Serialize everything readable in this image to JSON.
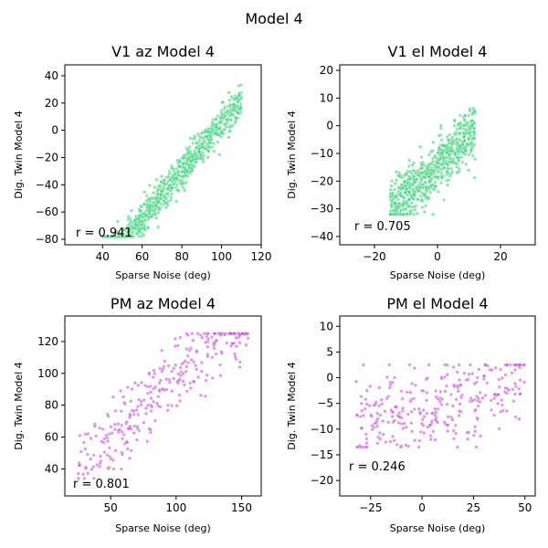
{
  "figure_title": "Model 4",
  "chart_data": [
    {
      "type": "scatter",
      "title": "V1 az Model 4",
      "xlabel": "Sparse Noise (deg)",
      "ylabel": "Dig. Twin Model 4",
      "xlim": [
        21,
        120
      ],
      "ylim": [
        -84,
        48
      ],
      "xticks": [
        40,
        60,
        80,
        100,
        120
      ],
      "yticks": [
        -80,
        -60,
        -40,
        -20,
        0,
        20,
        40
      ],
      "annotation": "r = 0.941",
      "color": "#2ECC71",
      "n_points": 900,
      "trend": {
        "slope": 1.75,
        "intercept": -170,
        "spread": 6,
        "x_range": [
          40,
          110
        ],
        "y_clip": [
          -78,
          38
        ]
      }
    },
    {
      "type": "scatter",
      "title": "V1 el Model 4",
      "xlabel": "Sparse Noise (deg)",
      "ylabel": "Dig. Twin Model 4",
      "xlim": [
        -31,
        31
      ],
      "ylim": [
        -43,
        22
      ],
      "xticks": [
        -20,
        0,
        20
      ],
      "yticks": [
        -40,
        -30,
        -20,
        -10,
        0,
        10,
        20
      ],
      "annotation": "r = 0.705",
      "color": "#2ECC71",
      "n_points": 700,
      "trend": {
        "slope": 1.1,
        "intercept": -14,
        "spread": 5,
        "x_range": [
          -15,
          12
        ],
        "y_clip": [
          -32,
          12
        ]
      }
    },
    {
      "type": "scatter",
      "title": "PM az Model 4",
      "xlabel": "Sparse Noise (deg)",
      "ylabel": "Dig. Twin Model 4",
      "xlim": [
        15,
        165
      ],
      "ylim": [
        23,
        136
      ],
      "xticks": [
        50,
        100,
        150
      ],
      "yticks": [
        40,
        60,
        80,
        100,
        120
      ],
      "annotation": "r = 0.801",
      "color": "#C03FD1",
      "n_points": 300,
      "trend": {
        "slope": 0.72,
        "intercept": 25,
        "spread": 12,
        "x_range": [
          25,
          155
        ],
        "y_clip": [
          34,
          125
        ]
      }
    },
    {
      "type": "scatter",
      "title": "PM el Model 4",
      "xlabel": "Sparse Noise (deg)",
      "ylabel": "Dig. Twin Model 4",
      "xlim": [
        -40,
        55
      ],
      "ylim": [
        -23,
        12
      ],
      "xticks": [
        -25,
        0,
        25,
        50
      ],
      "yticks": [
        -20,
        -15,
        -10,
        -5,
        0,
        5,
        10
      ],
      "annotation": "r = 0.246",
      "color": "#C03FD1",
      "n_points": 300,
      "trend": {
        "slope": 0.08,
        "intercept": -5.5,
        "spread": 4.5,
        "x_range": [
          -32,
          50
        ],
        "y_clip": [
          -13.5,
          2.5
        ]
      }
    }
  ]
}
